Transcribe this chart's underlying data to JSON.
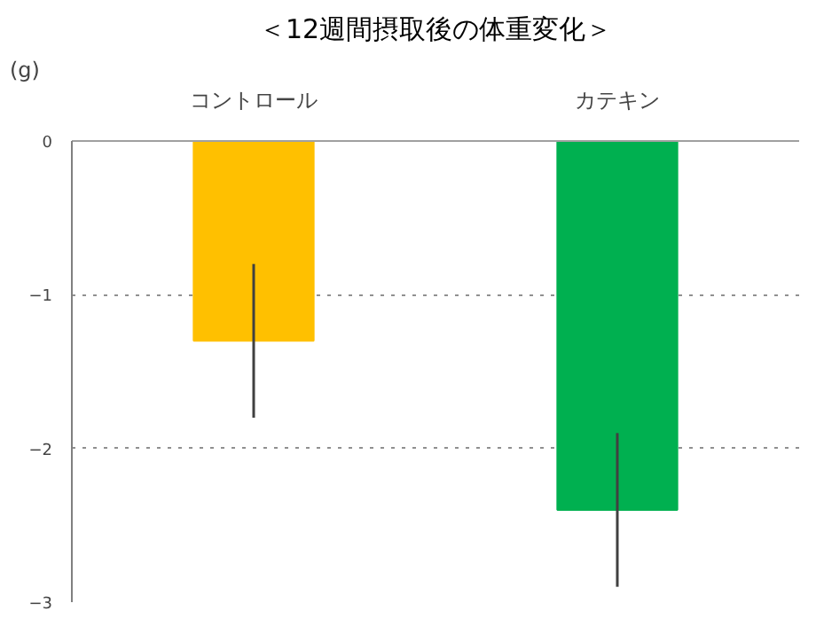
{
  "chart_data": {
    "type": "bar",
    "title": "＜12週間摂取後の体重変化＞",
    "ylabel": "(g)",
    "categories": [
      "コントロール",
      "カテキン"
    ],
    "values": [
      -1.3,
      -2.4
    ],
    "colors": [
      "#ffc000",
      "#00b050"
    ],
    "errors": [
      0.5,
      0.5
    ],
    "ylim": [
      -3,
      0
    ],
    "yticks": [
      0,
      -1,
      -2,
      -3
    ],
    "grid": "y"
  }
}
